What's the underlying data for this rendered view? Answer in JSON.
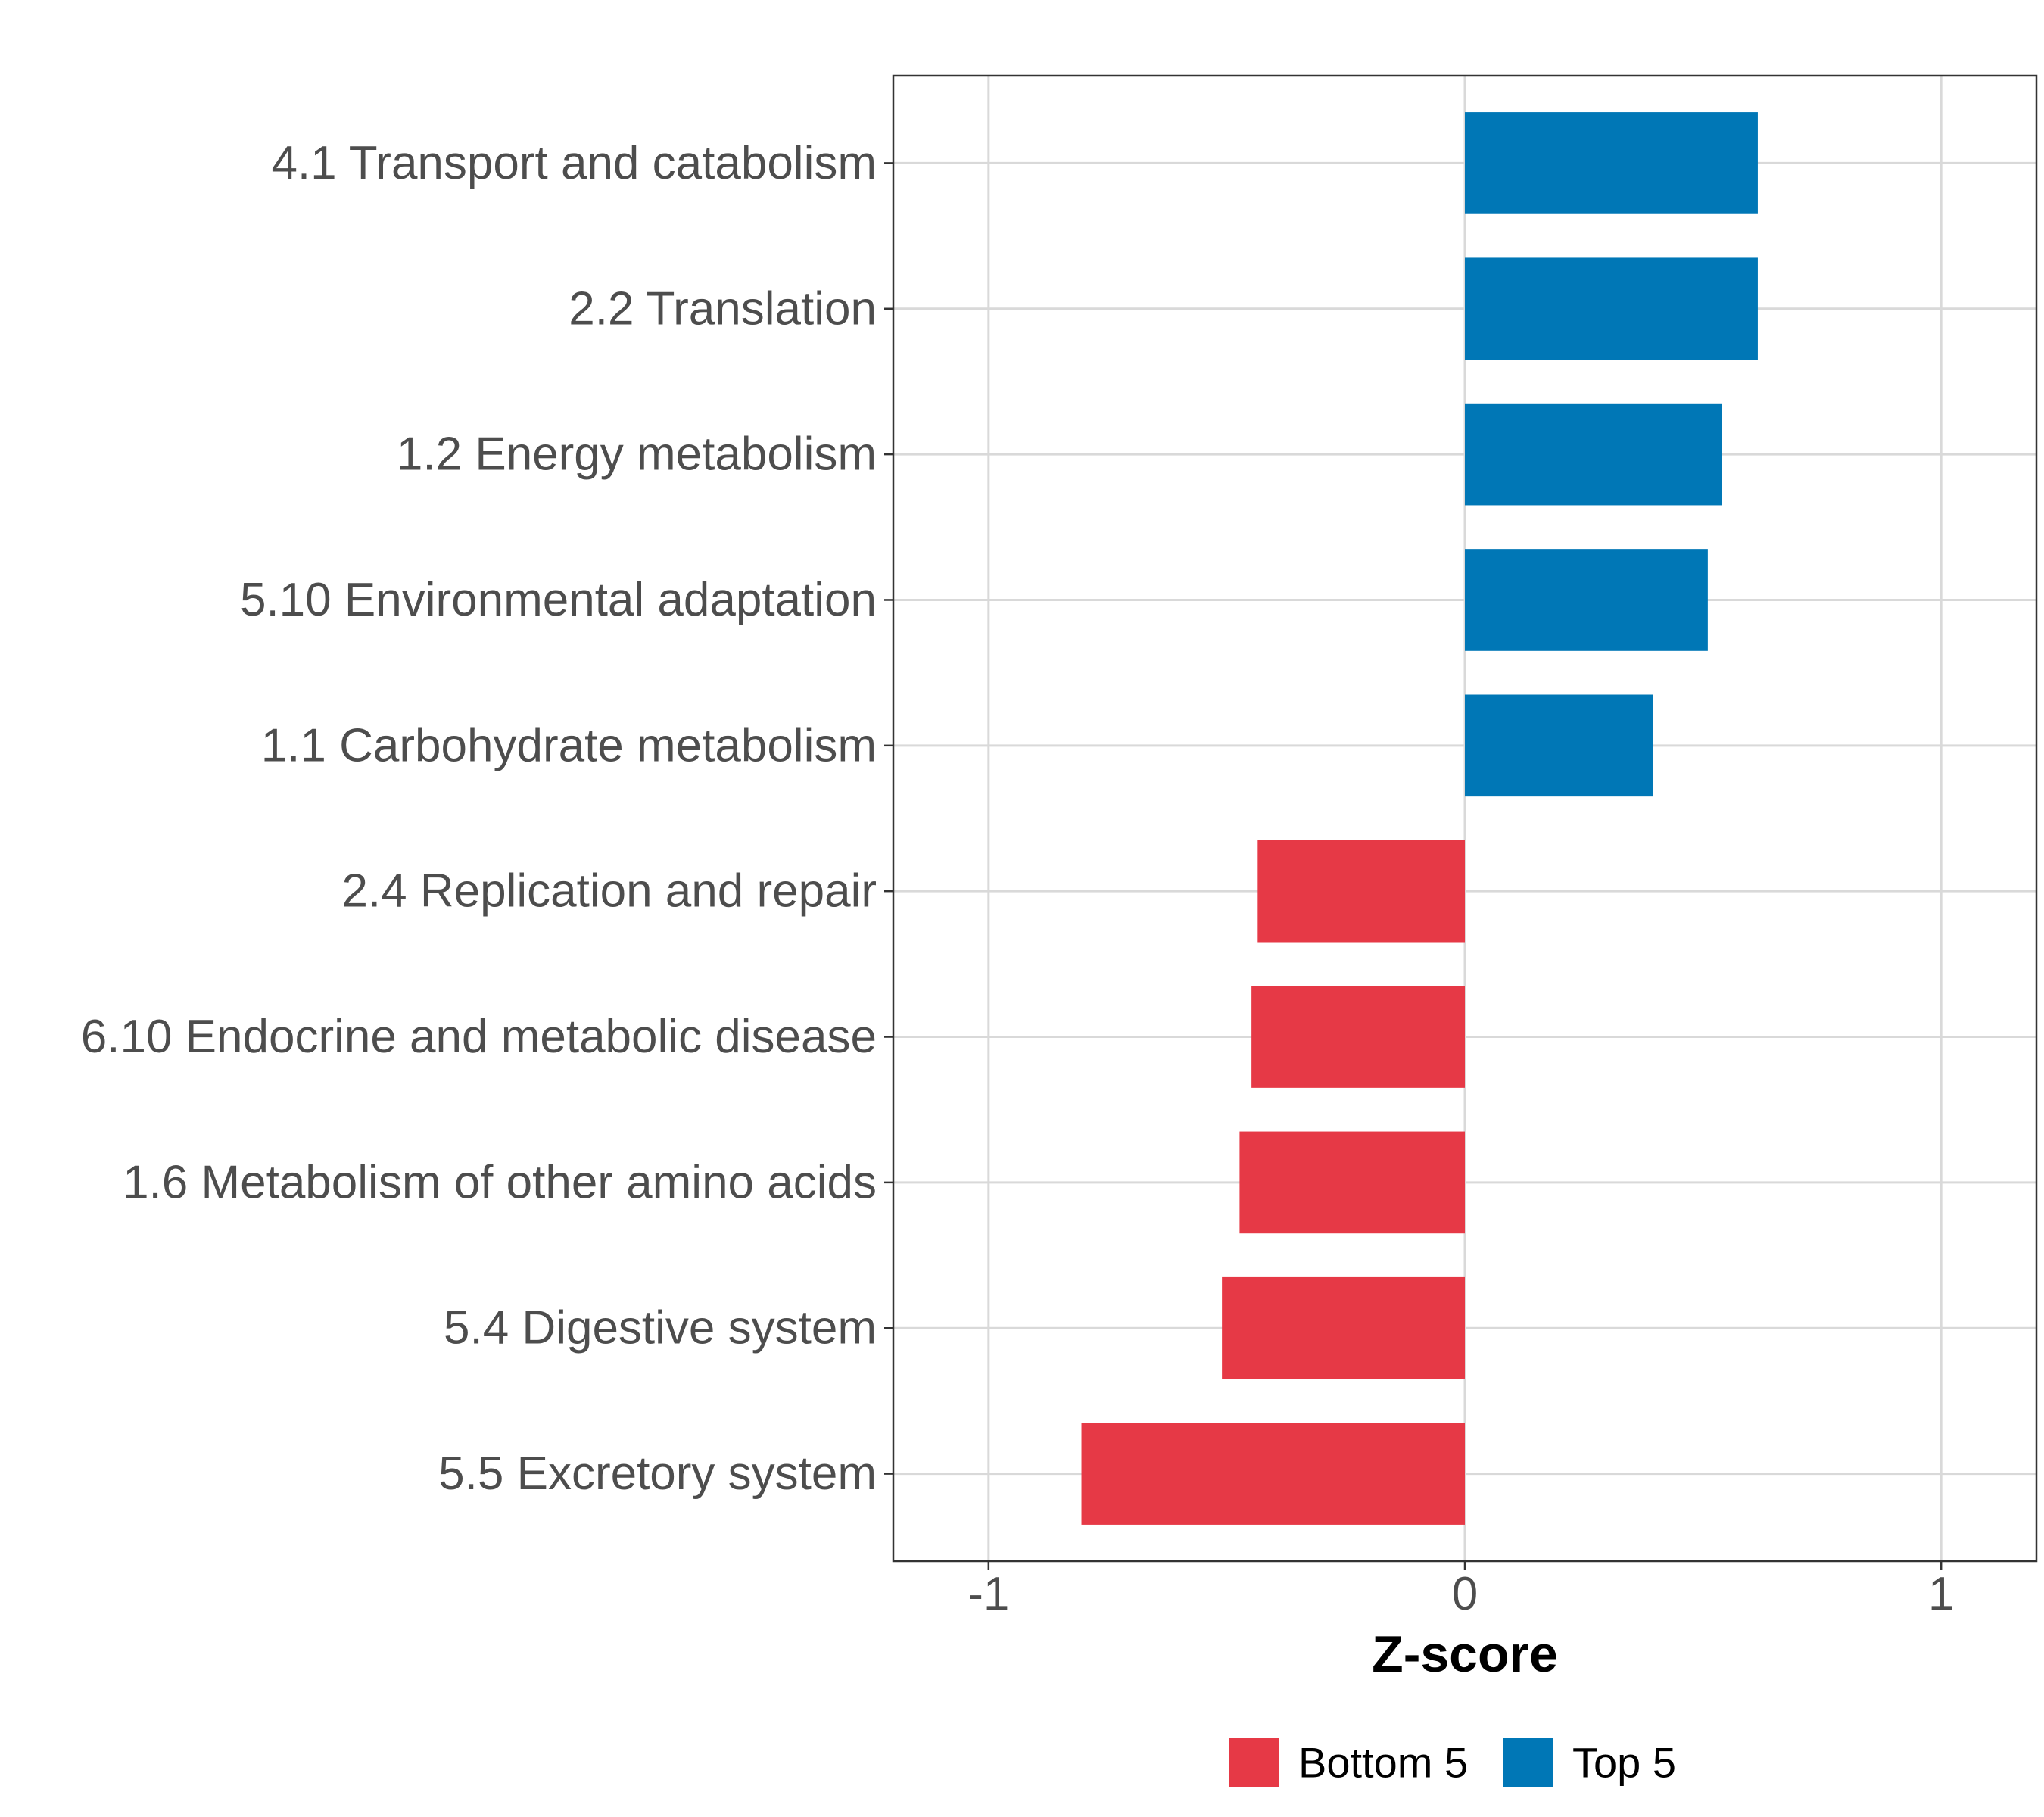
{
  "chart_data": {
    "type": "bar",
    "orientation": "horizontal",
    "categories": [
      "4.1 Transport and catabolism",
      "2.2 Translation",
      "1.2 Energy metabolism",
      "5.10 Environmental adaptation",
      "1.1 Carbohydrate metabolism",
      "2.4 Replication and repair",
      "6.10 Endocrine and metabolic disease",
      "1.6 Metabolism of other amino acids",
      "5.4 Digestive system",
      "5.5 Excretory system"
    ],
    "values": [
      0.615,
      0.615,
      0.54,
      0.51,
      0.395,
      -0.435,
      -0.448,
      -0.473,
      -0.51,
      -0.805
    ],
    "groups": [
      "Top 5",
      "Top 5",
      "Top 5",
      "Top 5",
      "Top 5",
      "Bottom 5",
      "Bottom 5",
      "Bottom 5",
      "Bottom 5",
      "Bottom 5"
    ],
    "xlim": [
      -1.2,
      1.2
    ],
    "xticks": [
      -1,
      0,
      1
    ],
    "xtick_labels": [
      "-1",
      "0",
      "1"
    ],
    "xlabel": "Z-score",
    "ylabel": "",
    "title": "",
    "grid": true,
    "legend": {
      "position": "bottom",
      "items": [
        {
          "label": "Bottom 5",
          "color": "#e63946"
        },
        {
          "label": "Top 5",
          "color": "#0077b6"
        }
      ]
    },
    "colors": {
      "Bottom 5": "#e63946",
      "Top 5": "#0077b6"
    }
  }
}
